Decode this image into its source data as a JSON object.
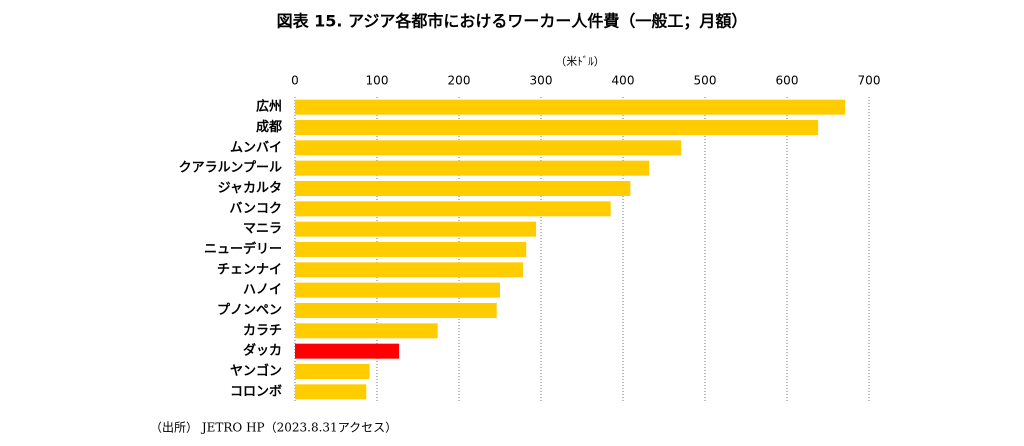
{
  "chart_data": {
    "type": "hbar",
    "title": "図表 15. アジア各都市におけるワーカー人件費（一般工；月額）",
    "unit_label": "（米ﾄﾞﾙ）",
    "source": "（出所） JETRO HP（2023.8.31アクセス）",
    "categories": [
      "広州",
      "成都",
      "ムンバイ",
      "クアラルンプール",
      "ジャカルタ",
      "バンコク",
      "マニラ",
      "ニューデリー",
      "チェンナイ",
      "ハノイ",
      "プノンペン",
      "カラチ",
      "ダッカ",
      "ヤンゴン",
      "コロンボ"
    ],
    "values": [
      671,
      638,
      471,
      432,
      409,
      385,
      294,
      282,
      278,
      250,
      246,
      174,
      127,
      91,
      87
    ],
    "colors": [
      "#ffcc00",
      "#ffcc00",
      "#ffcc00",
      "#ffcc00",
      "#ffcc00",
      "#ffcc00",
      "#ffcc00",
      "#ffcc00",
      "#ffcc00",
      "#ffcc00",
      "#ffcc00",
      "#ffcc00",
      "#ff0000",
      "#ffcc00",
      "#ffcc00"
    ],
    "xlim": [
      0,
      700
    ],
    "xticks": [
      0,
      100,
      200,
      300,
      400,
      500,
      600,
      700
    ],
    "grid": true
  }
}
